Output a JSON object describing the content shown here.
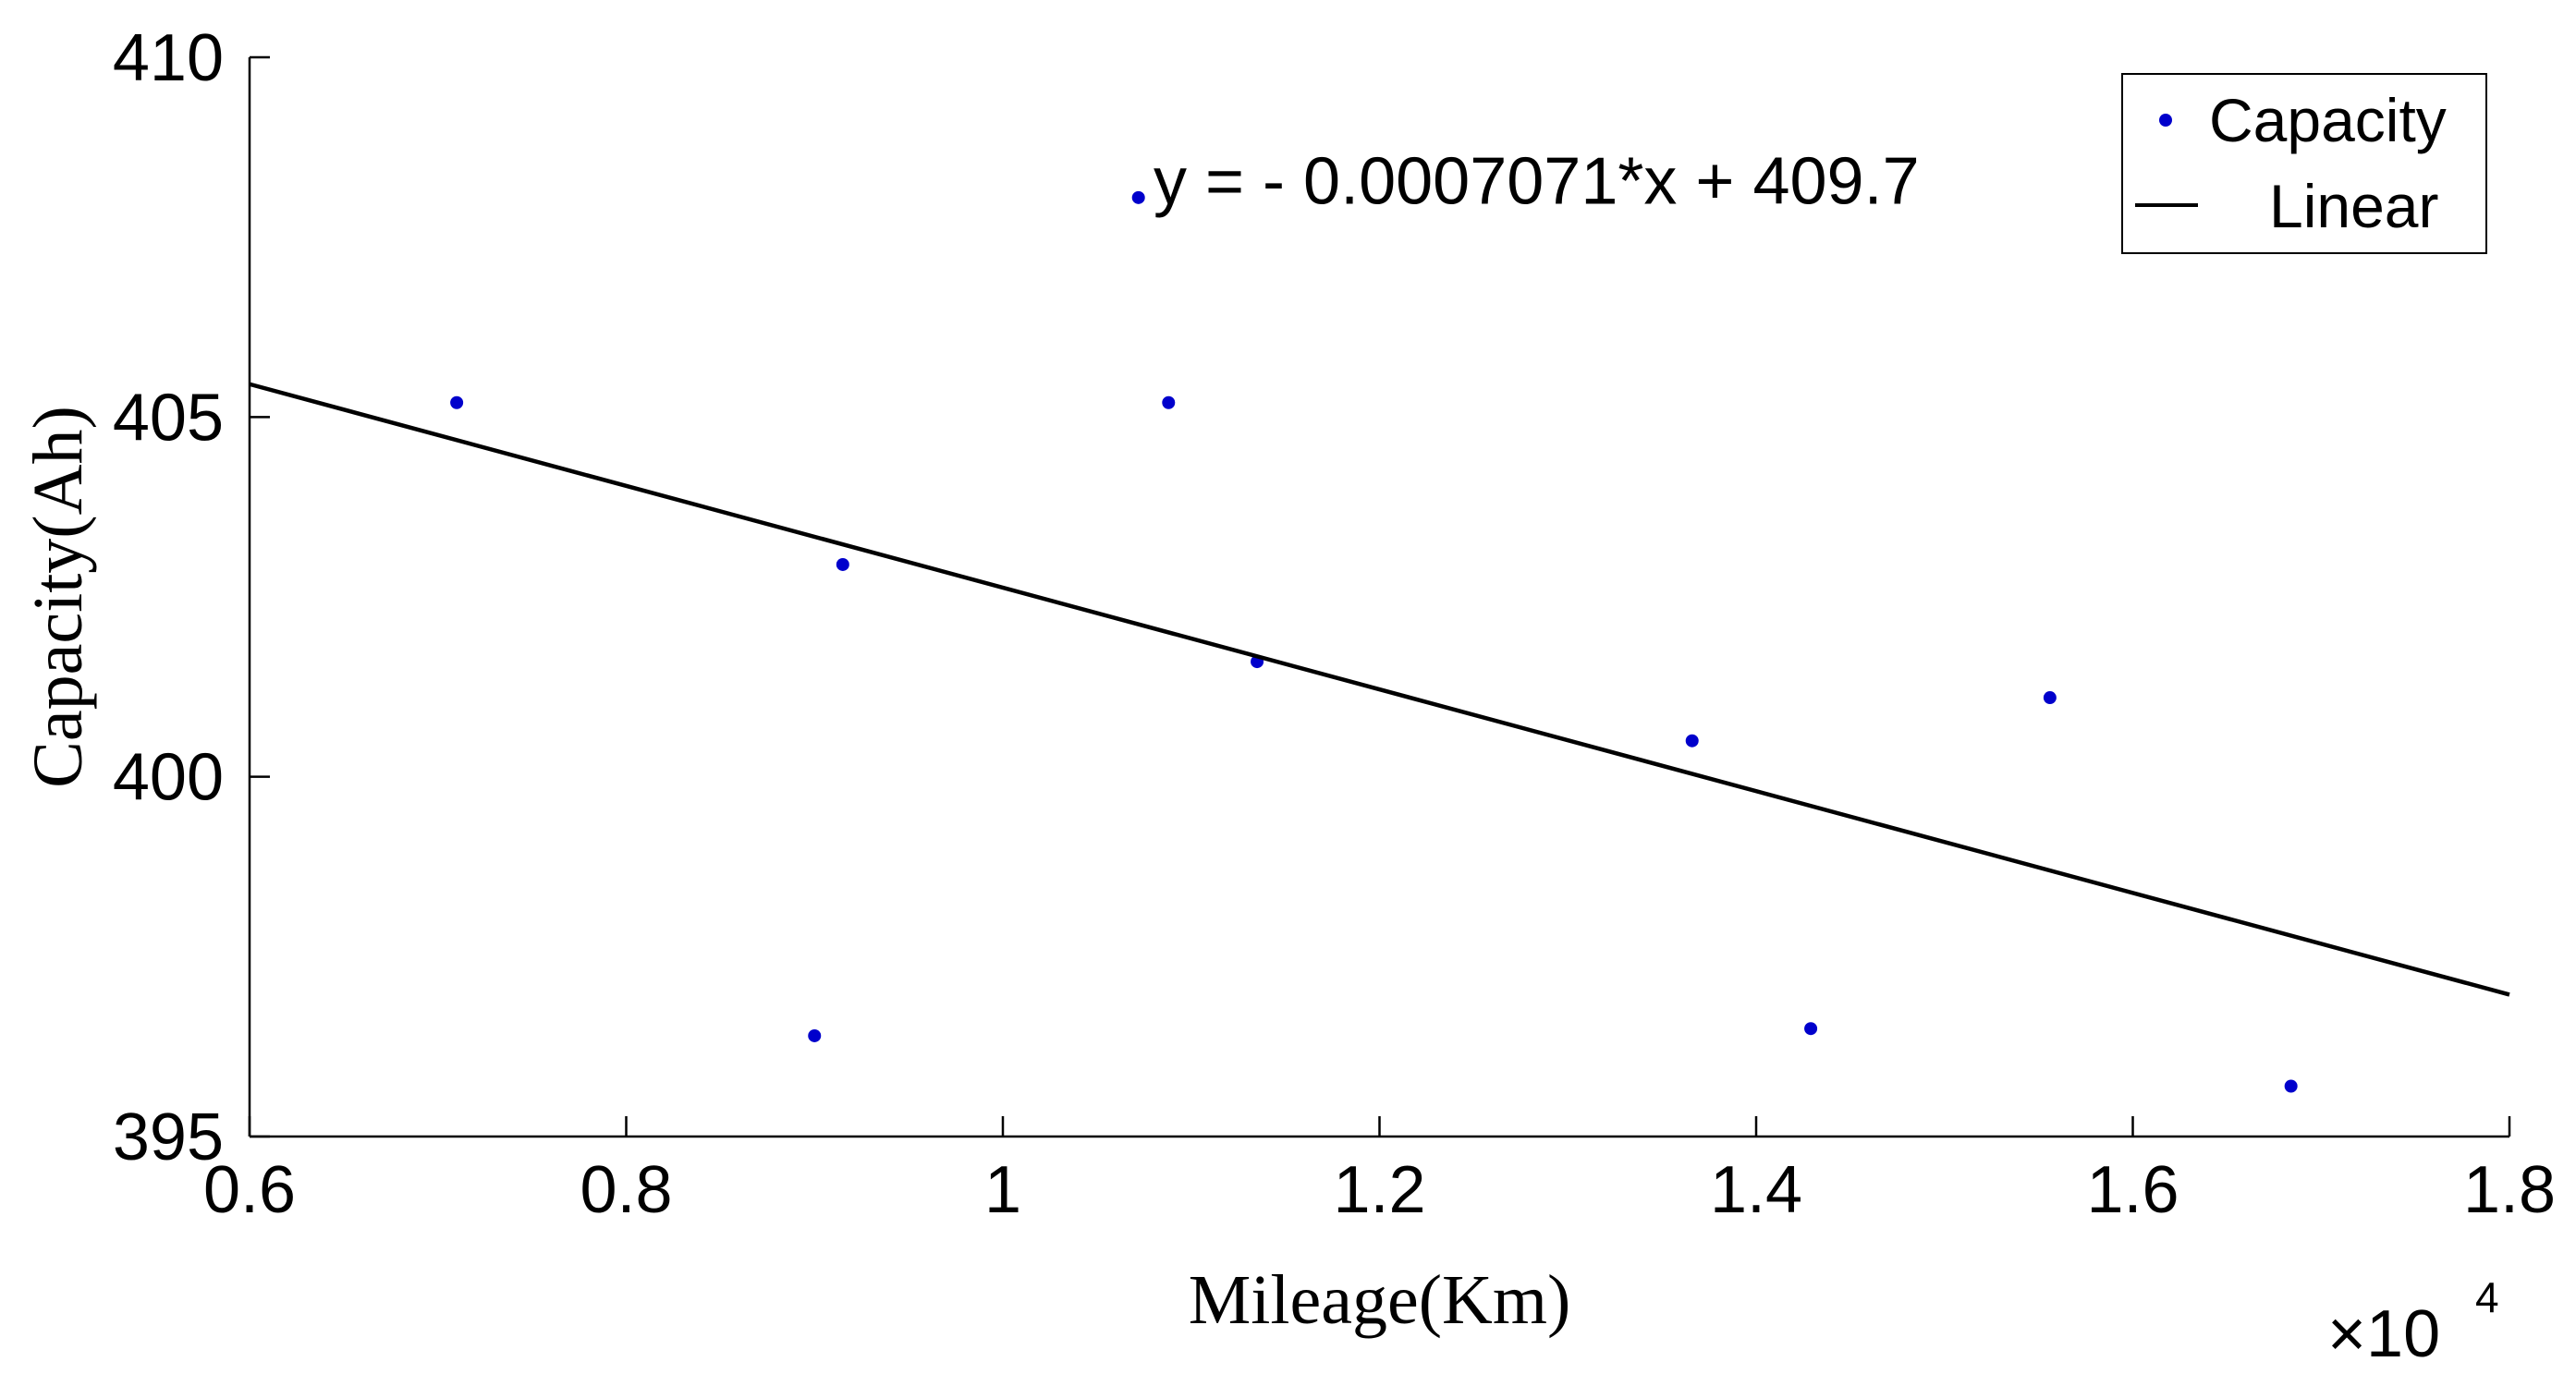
{
  "chart_data": {
    "type": "scatter",
    "title": "",
    "xlabel": "Mileage(Km)",
    "ylabel": "Capacity(Ah)",
    "x_multiplier_label": "×10",
    "x_multiplier_exponent": "4",
    "xlim": [
      0.6,
      1.8
    ],
    "ylim": [
      395,
      410
    ],
    "xticks": [
      0.6,
      0.8,
      1,
      1.2,
      1.4,
      1.6,
      1.8
    ],
    "xtick_labels": [
      "0.6",
      "0.8",
      "1",
      "1.2",
      "1.4",
      "1.6",
      "1.8"
    ],
    "yticks": [
      395,
      400,
      405,
      410
    ],
    "ytick_labels": [
      "395",
      "400",
      "405",
      "410"
    ],
    "grid": false,
    "legend_position": "top-right",
    "series": [
      {
        "name": "Capacity",
        "kind": "scatter",
        "color": "#0000cc",
        "x": [
          0.71,
          0.9,
          0.915,
          1.072,
          1.088,
          1.135,
          1.366,
          1.429,
          1.556,
          1.684
        ],
        "y": [
          405.2,
          396.4,
          402.95,
          408.05,
          405.2,
          401.6,
          400.5,
          396.5,
          401.1,
          395.7
        ]
      },
      {
        "name": "Linear",
        "kind": "line",
        "color": "#000000",
        "x": [
          0.6,
          1.8
        ],
        "y": [
          405.457,
          396.972
        ]
      }
    ],
    "annotations": [
      {
        "text": "y = - 0.0007071*x + 409.7",
        "x": 1.08,
        "y": 408.3
      }
    ]
  }
}
